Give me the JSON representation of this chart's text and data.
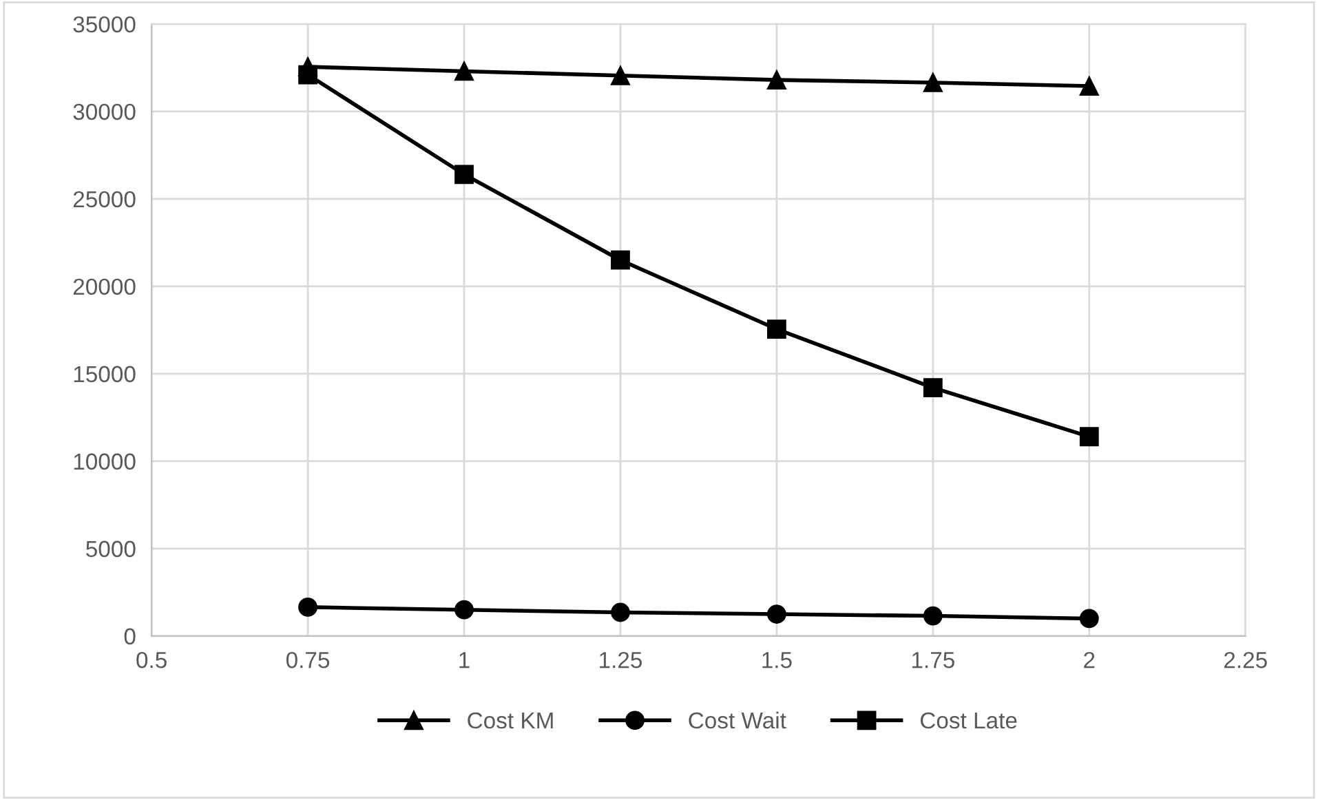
{
  "chart_data": {
    "type": "line",
    "x": [
      0.75,
      1,
      1.25,
      1.5,
      1.75,
      2
    ],
    "series": [
      {
        "name": "Cost KM",
        "color": "#000000",
        "marker": "triangle",
        "values": [
          32550,
          32300,
          32050,
          31800,
          31650,
          31450
        ]
      },
      {
        "name": "Cost Wait",
        "color": "#000000",
        "marker": "circle",
        "values": [
          1650,
          1500,
          1350,
          1250,
          1150,
          1000
        ]
      },
      {
        "name": "Cost Late",
        "color": "#000000",
        "marker": "square",
        "values": [
          32100,
          26400,
          21500,
          17550,
          14200,
          11400
        ]
      }
    ],
    "xlim": [
      0.5,
      2.25
    ],
    "xticks": [
      0.5,
      0.75,
      1,
      1.25,
      1.5,
      1.75,
      2,
      2.25
    ],
    "ylim": [
      0,
      35000
    ],
    "yticks": [
      0,
      5000,
      10000,
      15000,
      20000,
      25000,
      30000,
      35000
    ],
    "grid": true,
    "legend": "bottom",
    "line_style": "solid"
  }
}
